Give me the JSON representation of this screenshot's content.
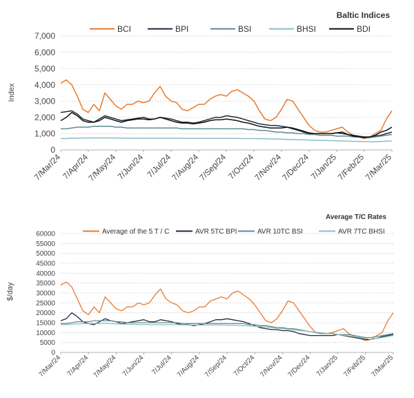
{
  "chart_data": [
    {
      "type": "line",
      "title": "Baltic Indices",
      "ylabel": "Index",
      "xlabel": "",
      "ylim": [
        0,
        7000
      ],
      "yticks": [
        "0",
        "1,000",
        "2,000",
        "3,000",
        "4,000",
        "5,000",
        "6,000",
        "7,000"
      ],
      "ytick_values": [
        0,
        1000,
        2000,
        3000,
        4000,
        5000,
        6000,
        7000
      ],
      "xticks": [
        "7/Mar/24",
        "7/Apr/24",
        "7/May/24",
        "7/Jun/24",
        "7/Jul/24",
        "7/Aug/24",
        "7/Sep/24",
        "7/Oct/24",
        "7/Nov/24",
        "7/Dec/24",
        "7/Jan/25",
        "7/Feb/25",
        "7/Mar/25"
      ],
      "grid": "horizontal",
      "legend_position": "top",
      "series": [
        {
          "name": "BCI",
          "color": "#E8792B",
          "values": [
            4100,
            4300,
            4000,
            3300,
            2500,
            2300,
            2800,
            2400,
            3500,
            3100,
            2700,
            2500,
            2800,
            2800,
            3000,
            2900,
            3000,
            3500,
            3900,
            3300,
            3000,
            2900,
            2500,
            2400,
            2600,
            2800,
            2800,
            3100,
            3300,
            3400,
            3300,
            3600,
            3700,
            3500,
            3300,
            3000,
            2400,
            1900,
            1800,
            2000,
            2500,
            3100,
            3000,
            2500,
            2000,
            1500,
            1200,
            1100,
            1100,
            1200,
            1300,
            1400,
            1100,
            900,
            800,
            700,
            800,
            1000,
            1200,
            1900,
            2400
          ]
        },
        {
          "name": "BPI",
          "color": "#1D2B3A",
          "values": [
            2300,
            2350,
            2400,
            2200,
            1900,
            1800,
            1700,
            1900,
            2100,
            2000,
            1900,
            1800,
            1850,
            1900,
            1950,
            2000,
            1900,
            1900,
            2000,
            1950,
            1900,
            1800,
            1700,
            1700,
            1650,
            1700,
            1800,
            1900,
            2000,
            2000,
            2100,
            2050,
            2000,
            1900,
            1800,
            1700,
            1600,
            1550,
            1500,
            1500,
            1450,
            1400,
            1300,
            1200,
            1100,
            1000,
            1000,
            1000,
            1000,
            1000,
            1050,
            1000,
            950,
            900,
            850,
            800,
            800,
            850,
            900,
            1000,
            1100
          ]
        },
        {
          "name": "BSI",
          "color": "#5E8B95",
          "values": [
            1300,
            1300,
            1350,
            1400,
            1400,
            1400,
            1450,
            1450,
            1450,
            1450,
            1400,
            1400,
            1350,
            1350,
            1350,
            1350,
            1350,
            1350,
            1350,
            1350,
            1350,
            1350,
            1300,
            1300,
            1300,
            1300,
            1300,
            1300,
            1300,
            1300,
            1300,
            1300,
            1300,
            1300,
            1250,
            1250,
            1200,
            1200,
            1150,
            1100,
            1100,
            1050,
            1050,
            1000,
            1000,
            950,
            950,
            900,
            900,
            900,
            850,
            850,
            850,
            800,
            800,
            750,
            750,
            800,
            850,
            900,
            950
          ]
        },
        {
          "name": "BHSI",
          "color": "#8FBCC4",
          "values": [
            700,
            700,
            720,
            720,
            730,
            730,
            740,
            740,
            740,
            740,
            730,
            730,
            720,
            720,
            720,
            720,
            720,
            720,
            720,
            720,
            720,
            720,
            710,
            710,
            710,
            710,
            710,
            710,
            710,
            710,
            710,
            710,
            710,
            700,
            700,
            700,
            690,
            690,
            680,
            670,
            660,
            650,
            640,
            630,
            620,
            610,
            600,
            590,
            580,
            570,
            560,
            550,
            540,
            530,
            520,
            510,
            500,
            510,
            520,
            540,
            550
          ]
        },
        {
          "name": "BDI",
          "color": "#111111",
          "values": [
            1800,
            2000,
            2300,
            2100,
            1800,
            1700,
            1700,
            1800,
            2000,
            1900,
            1800,
            1700,
            1800,
            1850,
            1900,
            1900,
            1850,
            1900,
            2000,
            1900,
            1800,
            1700,
            1650,
            1650,
            1600,
            1650,
            1700,
            1800,
            1850,
            1850,
            1900,
            1850,
            1800,
            1700,
            1650,
            1550,
            1450,
            1400,
            1350,
            1350,
            1350,
            1400,
            1350,
            1250,
            1150,
            1050,
            1000,
            1000,
            1000,
            1000,
            1050,
            1100,
            950,
            850,
            800,
            750,
            800,
            900,
            1100,
            1200,
            1400
          ]
        }
      ]
    },
    {
      "type": "line",
      "title": "Average T/C Rates",
      "ylabel": "$/day",
      "xlabel": "",
      "ylim": [
        0,
        60000
      ],
      "yticks": [
        "0",
        "5000",
        "10000",
        "15000",
        "20000",
        "25000",
        "30000",
        "35000",
        "40000",
        "45000",
        "50000",
        "55000",
        "60000"
      ],
      "ytick_values": [
        0,
        5000,
        10000,
        15000,
        20000,
        25000,
        30000,
        35000,
        40000,
        45000,
        50000,
        55000,
        60000
      ],
      "xticks": [
        "7/Mar/24",
        "7/Apr/24",
        "7/May/24",
        "7/Jun/24",
        "7/Jul/24",
        "7/Aug/24",
        "7/Sep/24",
        "7/Oct/24",
        "7/Nov/24",
        "7/Dec/24",
        "7/Jan/25",
        "7/Feb/25",
        "7/Mar/25"
      ],
      "grid": "horizontal",
      "legend_position": "top",
      "series": [
        {
          "name": "Average of the 5 T / C",
          "color": "#E8792B",
          "values": [
            34000,
            35500,
            33000,
            27000,
            21000,
            19000,
            23000,
            20000,
            28000,
            25000,
            22000,
            21000,
            23000,
            23000,
            25000,
            24000,
            25000,
            29000,
            32000,
            27000,
            25000,
            24000,
            21000,
            20000,
            21000,
            23000,
            23000,
            26000,
            27000,
            28000,
            27000,
            30000,
            31000,
            29000,
            27000,
            24000,
            20000,
            16000,
            15000,
            17000,
            21000,
            26000,
            25000,
            21000,
            17000,
            13000,
            10000,
            9500,
            9500,
            10000,
            11000,
            12000,
            9500,
            8000,
            7000,
            6000,
            6500,
            8500,
            10000,
            16000,
            20000
          ]
        },
        {
          "name": "AVR 5TC BPI",
          "color": "#1D2B3A",
          "values": [
            16000,
            17000,
            20000,
            18000,
            15500,
            14500,
            14000,
            15500,
            17000,
            16000,
            15500,
            14500,
            15000,
            15500,
            16000,
            16500,
            15500,
            15500,
            16500,
            16000,
            15500,
            14500,
            14000,
            14000,
            13500,
            14000,
            14500,
            15500,
            16500,
            16500,
            17000,
            16500,
            16000,
            15500,
            14500,
            13500,
            12500,
            12000,
            11500,
            11500,
            11000,
            11000,
            10500,
            9500,
            9000,
            8500,
            8500,
            8500,
            8500,
            8500,
            9000,
            8500,
            8000,
            7500,
            7000,
            6500,
            6500,
            7000,
            8000,
            8500,
            9000
          ]
        },
        {
          "name": "AVR 10TC BSI",
          "color": "#5E8B95",
          "values": [
            14500,
            14500,
            15000,
            15500,
            15500,
            15500,
            16000,
            16000,
            16000,
            16000,
            15500,
            15500,
            15000,
            15000,
            15000,
            15000,
            15000,
            15000,
            15000,
            15000,
            15000,
            15000,
            14500,
            14500,
            14500,
            14500,
            14500,
            14500,
            14500,
            14500,
            14500,
            14500,
            14500,
            14500,
            14000,
            14000,
            13500,
            13500,
            13000,
            12500,
            12500,
            12000,
            12000,
            11500,
            11000,
            10500,
            10000,
            9500,
            9500,
            9500,
            9000,
            9000,
            9000,
            8500,
            8000,
            7500,
            7500,
            8000,
            8500,
            9000,
            9500
          ]
        },
        {
          "name": "AVR 7TC BHSI",
          "color": "#8FBCC4",
          "values": [
            14000,
            14000,
            14300,
            14300,
            14500,
            14500,
            14600,
            14600,
            14600,
            14500,
            14400,
            14300,
            14200,
            14200,
            14100,
            14100,
            14000,
            14000,
            14000,
            14000,
            14000,
            14000,
            13900,
            13800,
            13800,
            13800,
            13800,
            13800,
            13800,
            13800,
            13700,
            13700,
            13600,
            13500,
            13400,
            13200,
            13000,
            12800,
            12500,
            12200,
            12000,
            11700,
            11400,
            11100,
            10800,
            10500,
            10200,
            9900,
            9600,
            9300,
            9000,
            8700,
            8300,
            7900,
            7500,
            7000,
            6500,
            7000,
            7500,
            8000,
            8500
          ]
        }
      ]
    }
  ]
}
